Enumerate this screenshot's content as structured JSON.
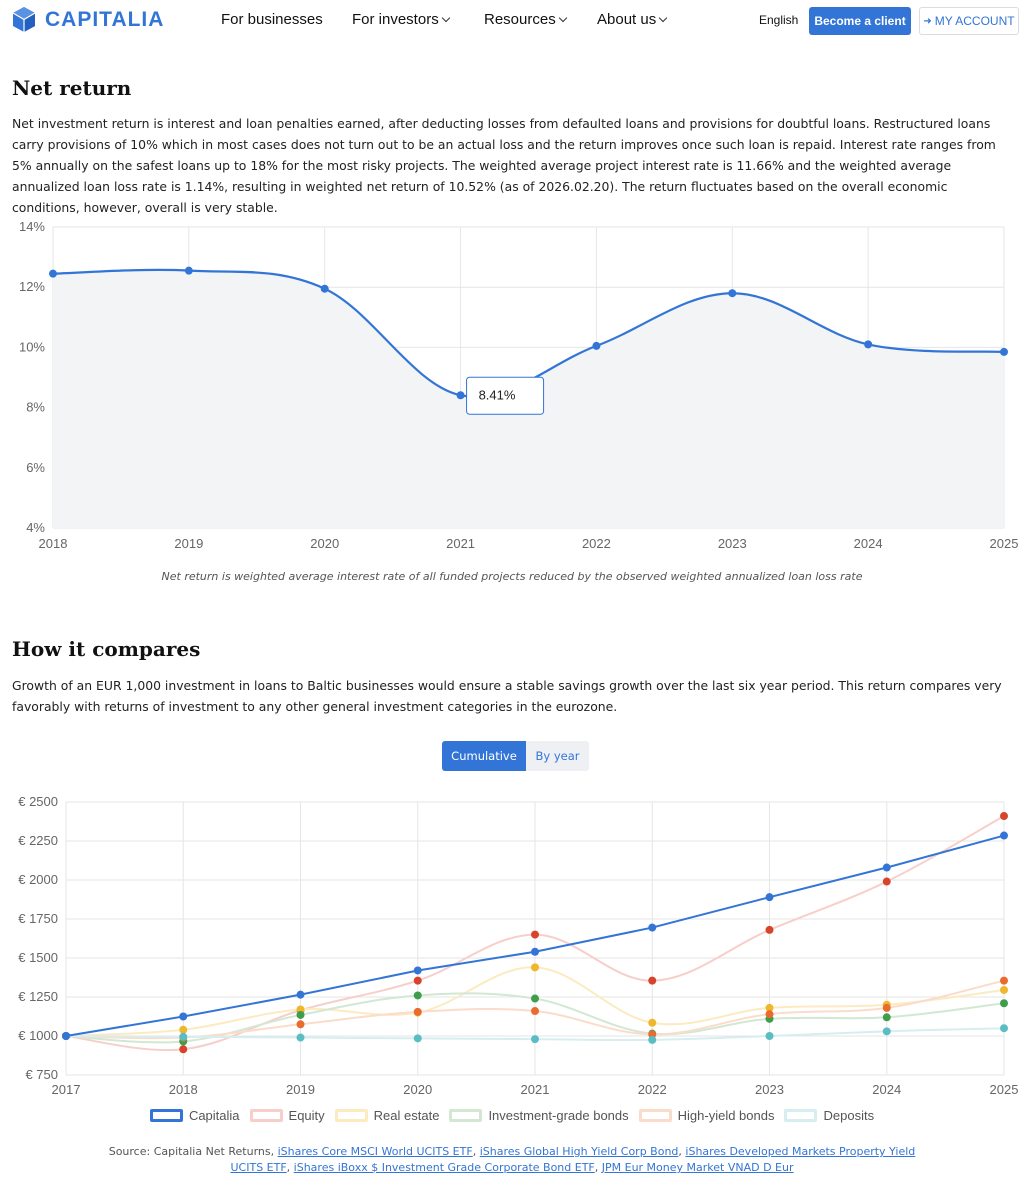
{
  "header": {
    "brand": "CAPITALIA",
    "nav": [
      {
        "label": "For businesses",
        "dropdown": false
      },
      {
        "label": "For investors",
        "dropdown": true
      },
      {
        "label": "Resources",
        "dropdown": true
      },
      {
        "label": "About us",
        "dropdown": true
      }
    ],
    "language": "English",
    "become_client_label": "Become a client",
    "account_label": "MY ACCOUNT",
    "brand_color": "#3375d6"
  },
  "net_return": {
    "title": "Net return",
    "text": "Net investment return is interest and loan penalties earned, after deducting losses from defaulted loans and provisions for doubtful loans. Restructured loans carry provisions of 10% which in most cases does not turn out to be an actual loss and the return improves once such loan is repaid. Interest rate ranges from 5% annually on the safest loans up to 18% for the most risky projects. The weighted average project interest rate is 11.66% and the weighted average annualized loan loss rate is 1.14%, resulting in weighted net return of 10.52% (as of 2026.02.20). The return fluctuates based on the overall economic conditions, however, overall is very stable.",
    "caption": "Net return is weighted average interest rate of all funded projects reduced by the observed weighted annualized loan loss rate",
    "tooltip": "8.41%"
  },
  "compare": {
    "title": "How it compares",
    "text": "Growth of an EUR 1,000 investment in loans to Baltic businesses would ensure a stable savings growth over the last six year period. This return compares very favorably with returns of investment to any other general investment categories in the eurozone.",
    "toggle_on": "Cumulative",
    "toggle_off": "By year",
    "source_prefix": "Source: Capitalia Net Returns, ",
    "sources": [
      "iShares Core MSCI World UCITS ETF",
      "iShares Global High Yield Corp Bond",
      "iShares Developed Markets Property Yield UCITS ETF",
      "iShares iBoxx $ Investment Grade Corporate Bond ETF",
      "JPM Eur Money Market VNAD D Eur"
    ]
  },
  "chart_data": [
    {
      "type": "line",
      "title": "Net return",
      "x": [
        "2018",
        "2019",
        "2020",
        "2021",
        "2022",
        "2023",
        "2024",
        "2025"
      ],
      "series": [
        {
          "name": "Net return",
          "values": [
            12.45,
            12.55,
            11.95,
            8.41,
            10.05,
            11.8,
            10.1,
            9.85
          ],
          "color": "#3375d6"
        }
      ],
      "y_ticks": [
        "4%",
        "6%",
        "8%",
        "10%",
        "12%",
        "14%"
      ],
      "ylim": [
        4,
        14
      ],
      "grid": true
    },
    {
      "type": "line",
      "title": "How it compares",
      "x": [
        "2017",
        "2018",
        "2019",
        "2020",
        "2021",
        "2022",
        "2023",
        "2024",
        "2025"
      ],
      "series": [
        {
          "name": "Capitalia",
          "values": [
            1000,
            1125,
            1265,
            1420,
            1540,
            1695,
            1890,
            2080,
            2285
          ],
          "color": "#3375d6",
          "line": "#3375d6",
          "width": 2
        },
        {
          "name": "Equity",
          "values": [
            1000,
            915,
            1165,
            1355,
            1650,
            1355,
            1680,
            1990,
            2410
          ],
          "color": "#d8432c",
          "line": "#f7cfca",
          "width": 2
        },
        {
          "name": "Real estate",
          "values": [
            1000,
            1040,
            1170,
            1150,
            1440,
            1085,
            1180,
            1200,
            1295
          ],
          "color": "#f1b72c",
          "line": "#fcebc0",
          "width": 2
        },
        {
          "name": "Investment-grade bonds",
          "values": [
            1000,
            965,
            1135,
            1260,
            1240,
            1015,
            1110,
            1120,
            1210
          ],
          "color": "#3f9e4b",
          "line": "#d2e8d3",
          "width": 2
        },
        {
          "name": "High-yield bonds",
          "values": [
            1000,
            990,
            1075,
            1155,
            1160,
            1010,
            1140,
            1180,
            1355
          ],
          "color": "#ea6b2e",
          "line": "#fbdccb",
          "width": 2
        },
        {
          "name": "Deposits",
          "values": [
            1000,
            995,
            990,
            985,
            980,
            975,
            1000,
            1030,
            1050
          ],
          "color": "#5bbdc4",
          "line": "#d6eef0",
          "width": 2
        }
      ],
      "y_ticks": [
        "€ 750",
        "€ 1000",
        "€ 1250",
        "€ 1500",
        "€ 1750",
        "€ 2000",
        "€ 2250",
        "€ 2500"
      ],
      "ylim": [
        750,
        2500
      ],
      "grid": true
    }
  ]
}
